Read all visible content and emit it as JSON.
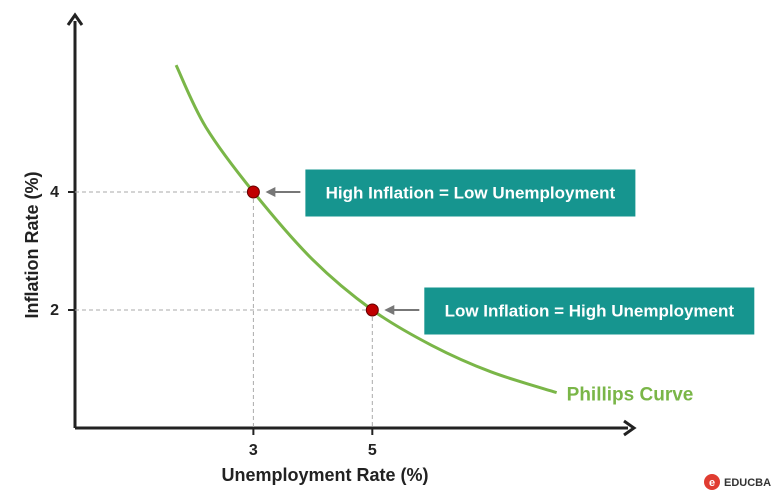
{
  "chart_data": {
    "type": "line",
    "xlabel": "Unemployment Rate (%)",
    "ylabel": "Inflation Rate (%)",
    "xlim": [
      0,
      9.3
    ],
    "ylim": [
      0,
      7
    ],
    "xticks": [
      3,
      5
    ],
    "yticks": [
      2,
      4
    ],
    "grid": false,
    "series": [
      {
        "name": "Phillips Curve",
        "color": "#7ab648",
        "x": [
          1.7,
          2.2,
          3,
          4,
          5,
          6,
          7,
          8.1
        ],
        "values": [
          6.15,
          5.1,
          4,
          2.85,
          2,
          1.4,
          0.95,
          0.6
        ]
      }
    ],
    "points": {
      "x": [
        3,
        5
      ],
      "values": [
        4,
        2
      ],
      "color": "#c00000"
    },
    "annotations": [
      "High Inflation = Low Unemployment",
      "Low Inflation = High Unemployment"
    ],
    "annotation_color": "#16958f",
    "watermark": "EDUCBA"
  }
}
